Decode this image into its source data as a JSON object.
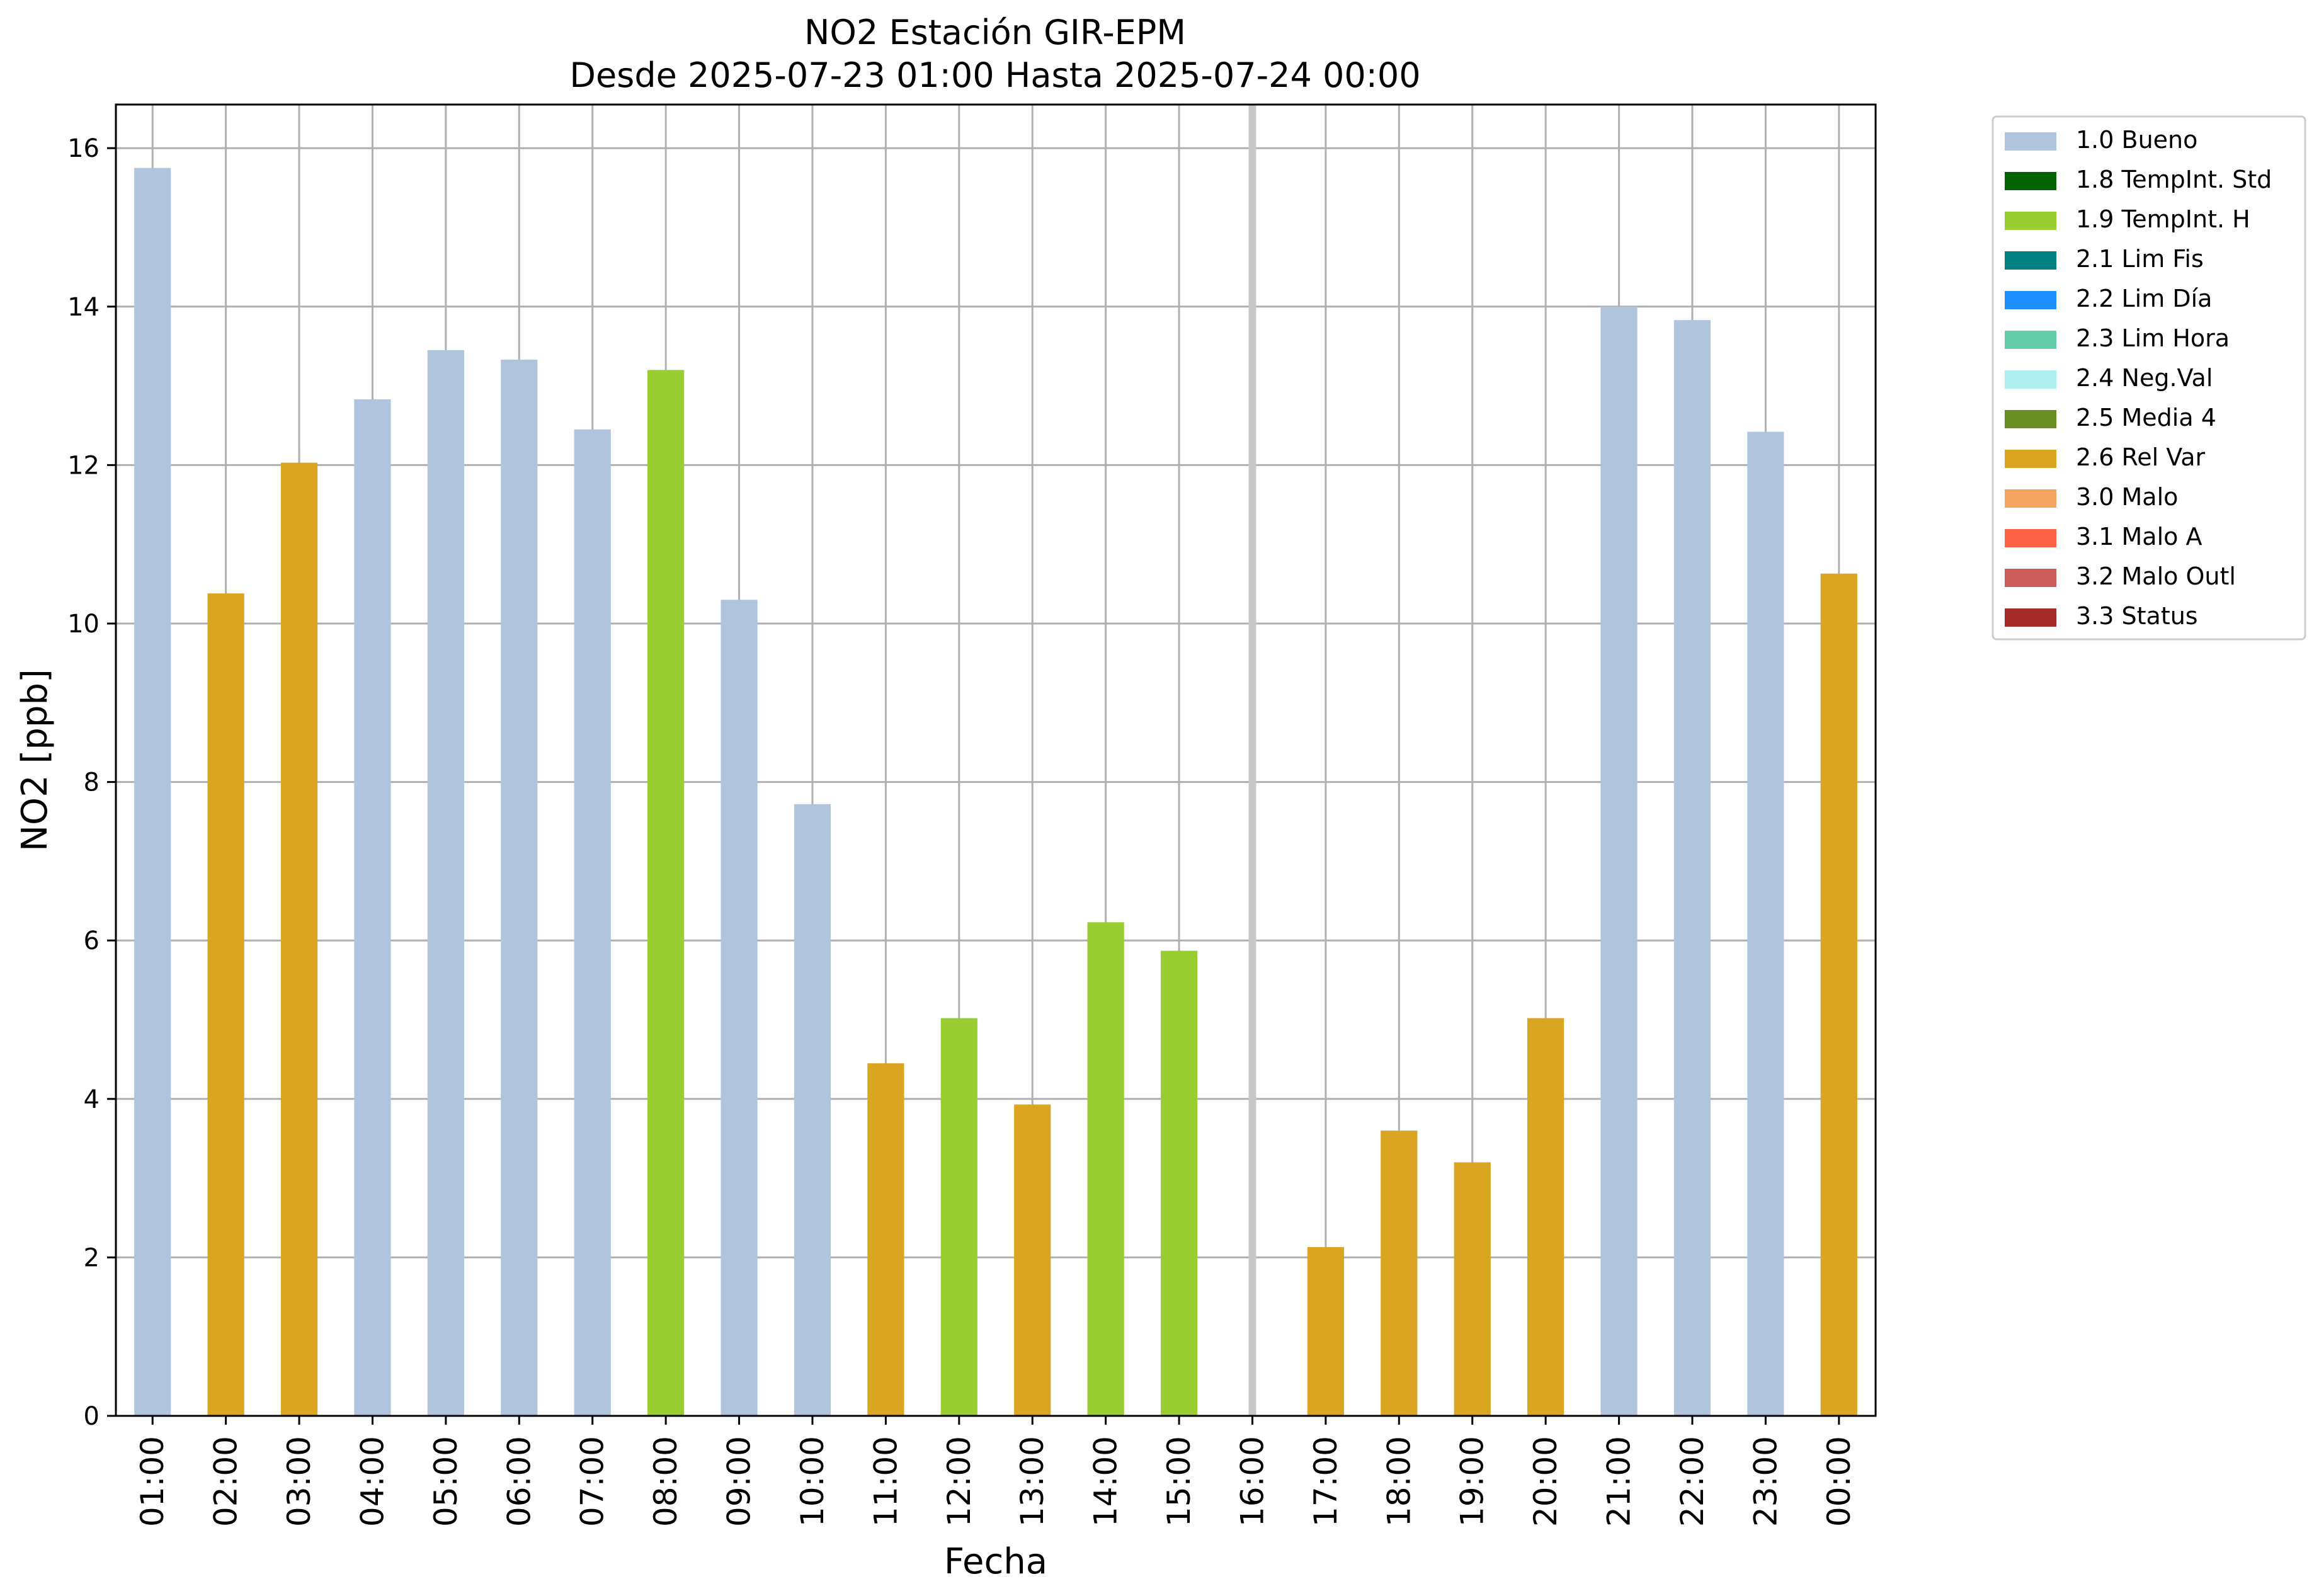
{
  "chart_data": {
    "type": "bar",
    "title": "NO2 Estación GIR-EPM",
    "subtitle": "Desde 2025-07-23 01:00 Hasta 2025-07-24 00:00",
    "xlabel": "Fecha",
    "ylabel": "NO2 [ppb]",
    "ylim": [
      0,
      16.55
    ],
    "yticks": [
      0,
      2,
      4,
      6,
      8,
      10,
      12,
      14,
      16
    ],
    "grid": true,
    "legend_position": "outside-top-right",
    "missing_marker_category": "16:00",
    "categories": [
      "01:00",
      "02:00",
      "03:00",
      "04:00",
      "05:00",
      "06:00",
      "07:00",
      "08:00",
      "09:00",
      "10:00",
      "11:00",
      "12:00",
      "13:00",
      "14:00",
      "15:00",
      "16:00",
      "17:00",
      "18:00",
      "19:00",
      "20:00",
      "21:00",
      "22:00",
      "23:00",
      "00:00"
    ],
    "values": [
      15.75,
      10.38,
      12.03,
      12.83,
      13.45,
      13.33,
      12.45,
      13.2,
      10.3,
      7.72,
      4.45,
      5.02,
      3.93,
      6.23,
      5.87,
      null,
      2.13,
      3.6,
      3.2,
      5.02,
      14.0,
      13.83,
      12.42,
      10.63
    ],
    "flags": [
      "1.0 Bueno",
      "2.6 Rel Var",
      "2.6 Rel Var",
      "1.0 Bueno",
      "1.0 Bueno",
      "1.0 Bueno",
      "1.0 Bueno",
      "1.9 TempInt. H",
      "1.0 Bueno",
      "1.0 Bueno",
      "2.6 Rel Var",
      "1.9 TempInt. H",
      "2.6 Rel Var",
      "1.9 TempInt. H",
      "1.9 TempInt. H",
      null,
      "2.6 Rel Var",
      "2.6 Rel Var",
      "2.6 Rel Var",
      "2.6 Rel Var",
      "1.0 Bueno",
      "1.0 Bueno",
      "1.0 Bueno",
      "2.6 Rel Var"
    ],
    "legend": [
      {
        "label": "1.0 Bueno",
        "color": "#b0c4de"
      },
      {
        "label": "1.8 TempInt. Std",
        "color": "#006400"
      },
      {
        "label": "1.9 TempInt. H",
        "color": "#9acd32"
      },
      {
        "label": "2.1 Lim Fis",
        "color": "#008080"
      },
      {
        "label": "2.2 Lim Día",
        "color": "#1e90ff"
      },
      {
        "label": "2.3 Lim Hora",
        "color": "#66cdaa"
      },
      {
        "label": "2.4 Neg.Val",
        "color": "#afeeee"
      },
      {
        "label": "2.5 Media 4",
        "color": "#6b8e23"
      },
      {
        "label": "2.6 Rel Var",
        "color": "#daa520"
      },
      {
        "label": "3.0 Malo",
        "color": "#f4a460"
      },
      {
        "label": "3.1 Malo A",
        "color": "#ff6347"
      },
      {
        "label": "3.2 Malo Outl",
        "color": "#cd5c5c"
      },
      {
        "label": "3.3 Status",
        "color": "#a52a2a"
      }
    ],
    "grid_color": "#b0b0b0",
    "missing_marker_color": "#c8c8c8"
  }
}
